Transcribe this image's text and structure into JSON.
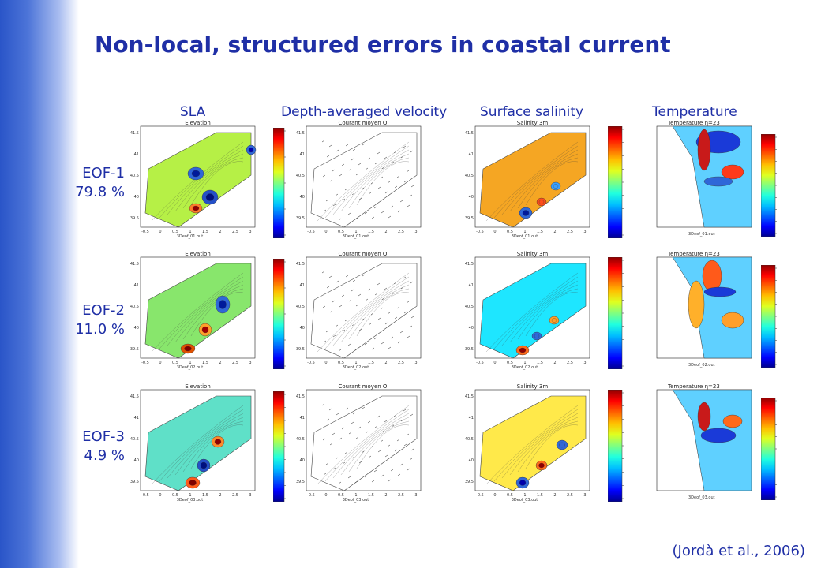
{
  "title": "Non-local, structured errors in coastal current",
  "columns": [
    "SLA",
    "Depth-averaged velocity",
    "Surface salinity",
    "Temperature"
  ],
  "rows": [
    {
      "eof": "EOF-1",
      "variance": "79.8 %",
      "file": "3Deof_01.out"
    },
    {
      "eof": "EOF-2",
      "variance": "11.0 %",
      "file": "3Deof_02.out"
    },
    {
      "eof": "EOF-3",
      "variance": "4.9 %",
      "file": "3Deof_03.out"
    }
  ],
  "panel_titles": {
    "sla": "Elevation",
    "velocity": "Courant moyen OI",
    "salinity": "Salinity 3m",
    "temperature": "Temperature η=23"
  },
  "axis_ticks": {
    "lon": [
      "-0.5",
      "0",
      "0.5",
      "1",
      "1.5",
      "2",
      "2.5",
      "3"
    ],
    "lat": [
      "41.5",
      "41",
      "40.5",
      "40",
      "39.5"
    ]
  },
  "citation": "(Jordà et al., 2006)",
  "colors": {
    "title_blue": "#1f2fa6",
    "band_blue": "#2a55c8"
  }
}
